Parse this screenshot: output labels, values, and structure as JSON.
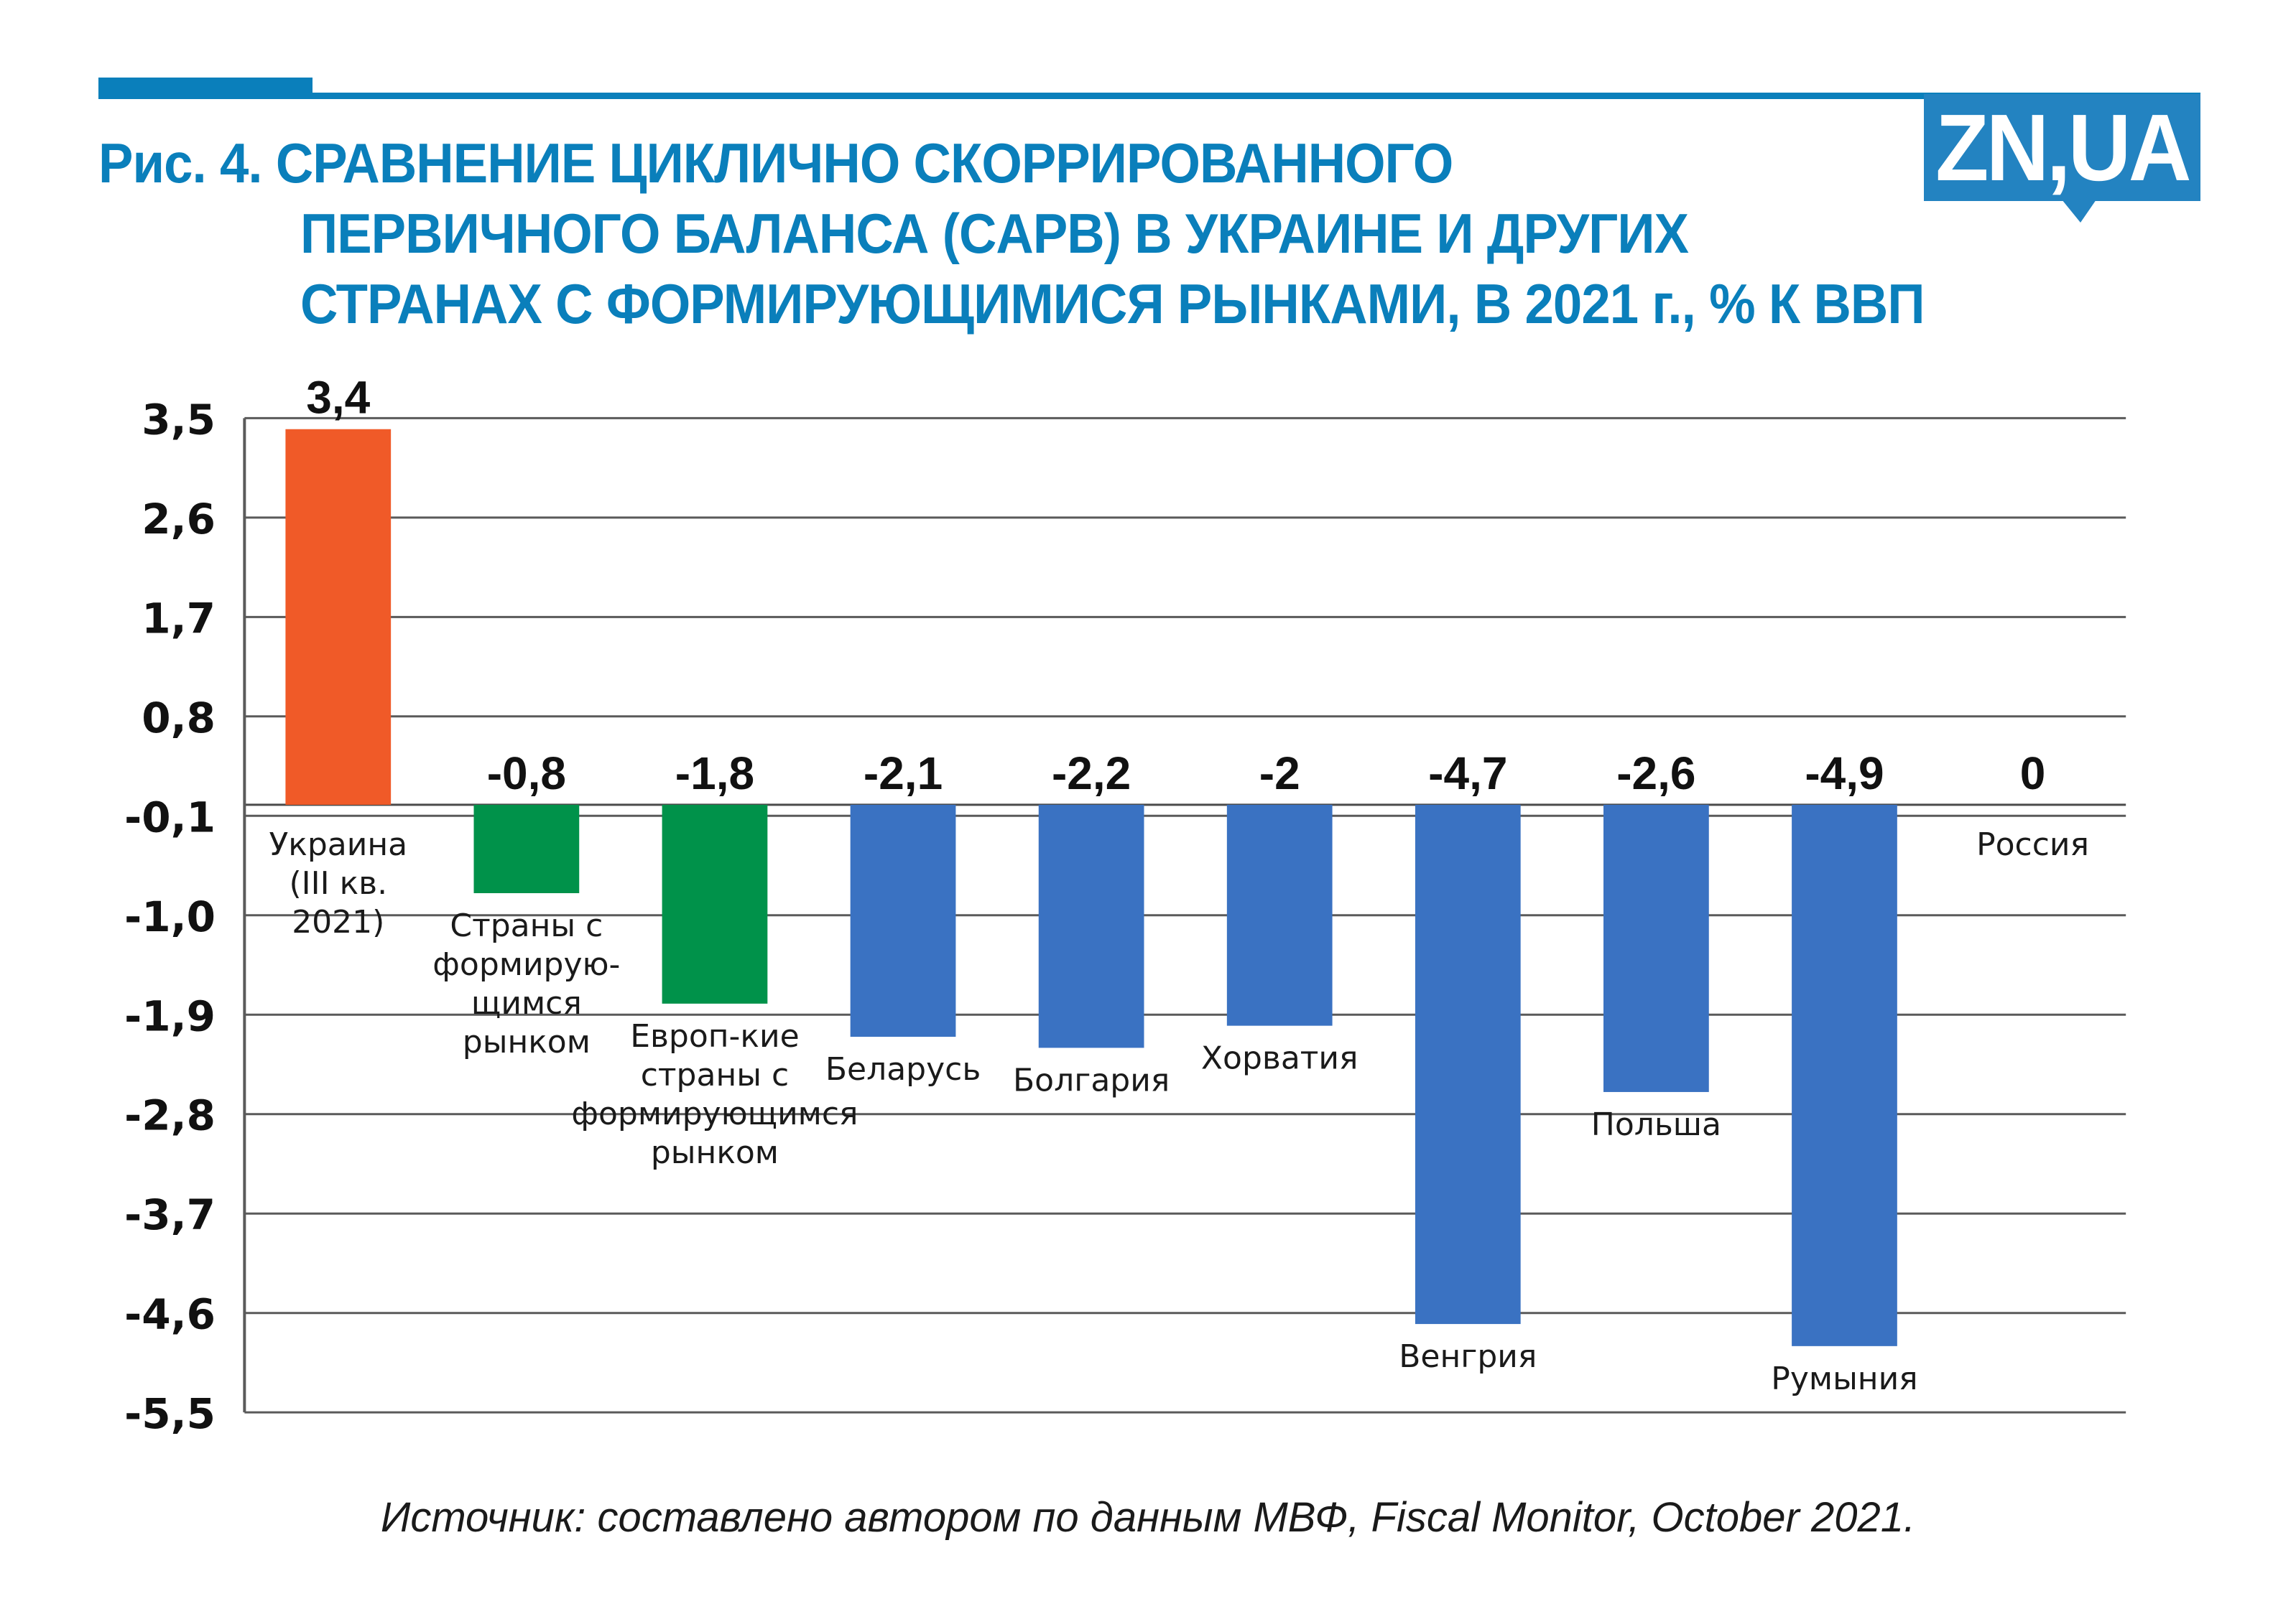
{
  "header": {
    "title_lines": [
      "Рис. 4. СРАВНЕНИЕ ЦИКЛИЧНО СКОРРИРОВАННОГО",
      "ПЕРВИЧНОГО БАЛАНСА (CAPB) В УКРАИНЕ И ДРУГИХ",
      "СТРАНАХ С ФОРМИРУЮЩИМИСЯ РЫНКАМИ, В 2021 г., % К ВВП"
    ],
    "logo_text": "ZN,UA",
    "brand_color": "#0a7fbb",
    "logo_color": "#2383c1"
  },
  "footer": {
    "source": "Источник: составлено автором по данным МВФ, Fiscal Monitor, October 2021."
  },
  "chart_data": {
    "type": "bar",
    "title": "Рис. 4. СРАВНЕНИЕ ЦИКЛИЧНО СКОРРИРОВАННОГО ПЕРВИЧНОГО БАЛАНСА (CAPB) В УКРАИНЕ И ДРУГИХ СТРАНАХ С ФОРМИРУЮЩИМИСЯ РЫНКАМИ, В 2021 г., % К ВВП",
    "xlabel": "",
    "ylabel": "",
    "ylim": [
      -5.5,
      3.5
    ],
    "yticks": [
      3.5,
      2.6,
      1.7,
      0.8,
      -0.1,
      -1.0,
      -1.9,
      -2.8,
      -3.7,
      -4.6,
      -5.5
    ],
    "ytick_labels": [
      "3,5",
      "2,6",
      "1,7",
      "0,8",
      "-0,1",
      "-1,0",
      "-1,9",
      "-2,8",
      "-3,7",
      "-4,6",
      "-5,5"
    ],
    "grid": true,
    "categories": [
      [
        "Украина",
        "(III кв.",
        "2021)"
      ],
      [
        "Страны с",
        "формирую-",
        "щимся",
        "рынком"
      ],
      [
        "Европ-кие",
        "страны с",
        "формирующимся",
        "рынком"
      ],
      [
        "Беларусь"
      ],
      [
        "Болгария"
      ],
      [
        "Хорватия"
      ],
      [
        "Венгрия"
      ],
      [
        "Польша"
      ],
      [
        "Румыния"
      ],
      [
        "Россия"
      ]
    ],
    "values": [
      3.4,
      -0.8,
      -1.8,
      -2.1,
      -2.2,
      -2.0,
      -4.7,
      -2.6,
      -4.9,
      0
    ],
    "value_labels": [
      "3,4",
      "-0,8",
      "-1,8",
      "-2,1",
      "-2,2",
      "-2",
      "-4,7",
      "-2,6",
      "-4,9",
      "0"
    ],
    "colors": [
      "#f05a28",
      "#00924a",
      "#00924a",
      "#3a72c2",
      "#3a72c2",
      "#3a72c2",
      "#3a72c2",
      "#3a72c2",
      "#3a72c2",
      "#3a72c2"
    ],
    "legend": "none"
  }
}
